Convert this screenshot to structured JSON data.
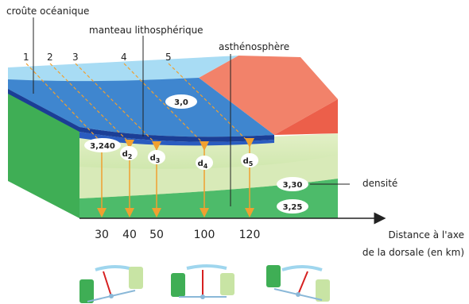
{
  "labels": {
    "oceanic_crust": "croûte océanique",
    "lithospheric_mantle": "manteau lithosphérique",
    "asthenosphere": "asthénosphère",
    "density": "densité"
  },
  "columns": [
    "1",
    "2",
    "3",
    "4",
    "5"
  ],
  "densities": {
    "water": "3,0",
    "crust": "3,240",
    "asthenosphere": "3,30",
    "deep": "3,25"
  },
  "depths": [
    {
      "symbol": "d",
      "index": "2"
    },
    {
      "symbol": "d",
      "index": "3"
    },
    {
      "symbol": "d",
      "index": "4"
    },
    {
      "symbol": "d",
      "index": "5"
    }
  ],
  "axis": {
    "ticks": [
      30,
      40,
      50,
      100,
      120
    ],
    "title_line1": "Distance à l'axe",
    "title_line2": "de la dorsale (en km)"
  }
}
